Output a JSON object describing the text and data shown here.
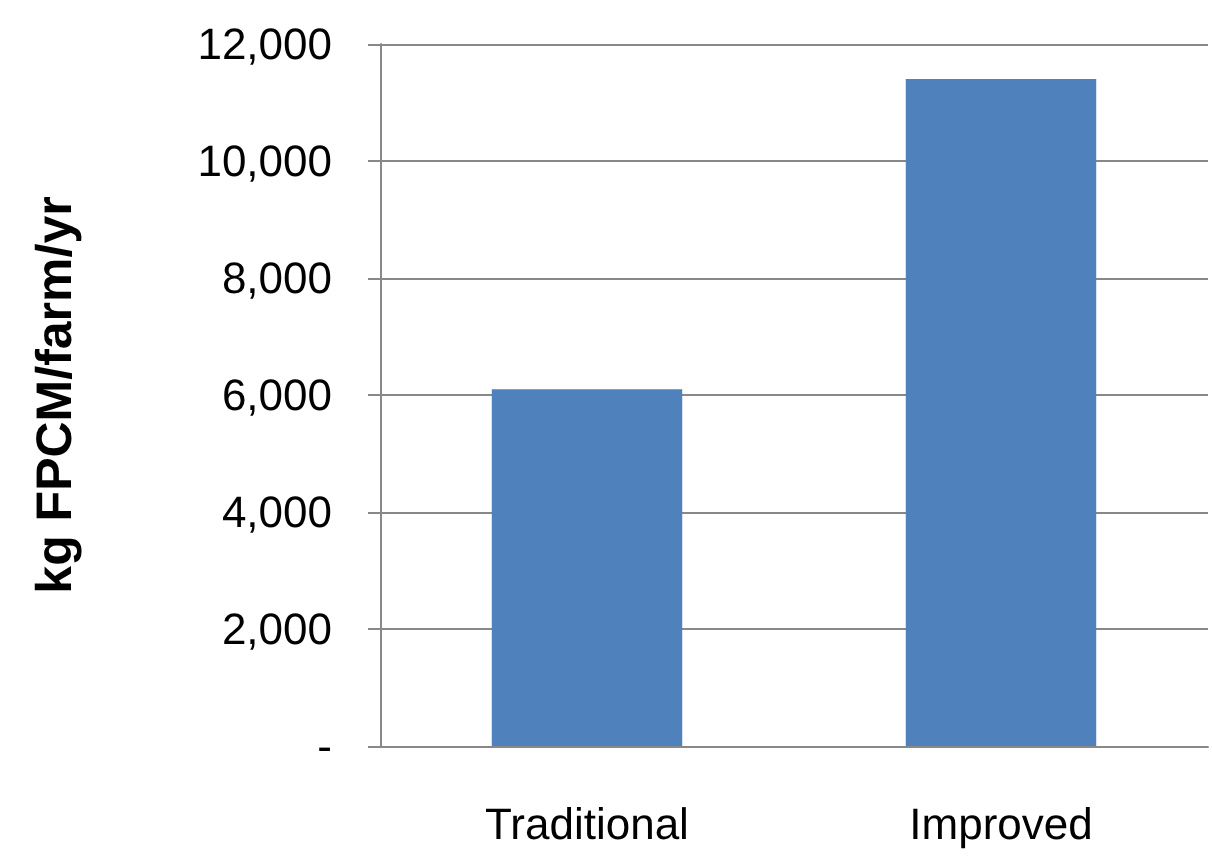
{
  "chart_data": {
    "type": "bar",
    "ylabel": "kg FPCM/farm/yr",
    "categories": [
      "Traditional",
      "Improved"
    ],
    "values": [
      6100,
      11400
    ],
    "color": "#4f81bd",
    "ylim": [
      0,
      12000
    ],
    "yticks": [
      {
        "value": 0,
        "label": "-"
      },
      {
        "value": 2000,
        "label": "2,000"
      },
      {
        "value": 4000,
        "label": "4,000"
      },
      {
        "value": 6000,
        "label": "6,000"
      },
      {
        "value": 8000,
        "label": "8,000"
      },
      {
        "value": 10000,
        "label": "10,000"
      },
      {
        "value": 12000,
        "label": "12,000"
      }
    ],
    "grid": "y"
  }
}
